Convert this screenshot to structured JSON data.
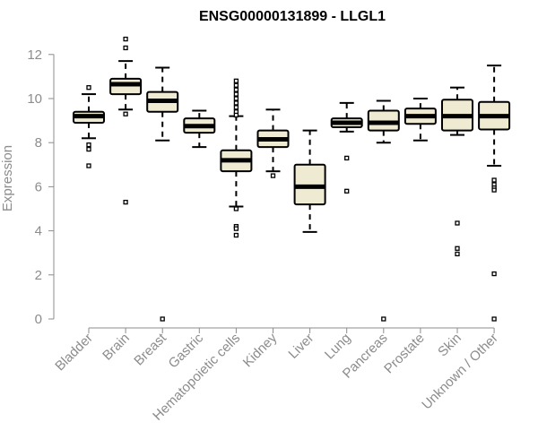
{
  "chart_data": {
    "type": "box",
    "title": "ENSG00000131899 - LLGL1",
    "xlabel": "",
    "ylabel": "Expression",
    "ylim": [
      0,
      12
    ],
    "yticks": [
      0,
      2,
      4,
      6,
      8,
      10,
      12
    ],
    "grid": false,
    "colors": {
      "box_fill": "#efead2",
      "stroke": "#000000",
      "axis": "#8c8c8c",
      "text": "#8c8c8c"
    },
    "categories": [
      "Bladder",
      "Brain",
      "Breast",
      "Gastric",
      "Hematopoietic cells",
      "Kidney",
      "Liver",
      "Lung",
      "Pancreas",
      "Prostate",
      "Skin",
      "Unknown / Other"
    ],
    "boxes": [
      {
        "name": "Bladder",
        "whisker_low": 8.2,
        "q1": 8.9,
        "median": 9.2,
        "q3": 9.4,
        "whisker_high": 10.2,
        "outliers": [
          10.5,
          7.9,
          7.7,
          6.95
        ]
      },
      {
        "name": "Brain",
        "whisker_low": 9.5,
        "q1": 10.2,
        "median": 10.65,
        "q3": 10.9,
        "whisker_high": 11.7,
        "outliers": [
          12.7,
          12.3,
          9.3,
          5.3
        ]
      },
      {
        "name": "Breast",
        "whisker_low": 8.1,
        "q1": 9.4,
        "median": 9.9,
        "q3": 10.3,
        "whisker_high": 11.4,
        "outliers": [
          0.0
        ]
      },
      {
        "name": "Gastric",
        "whisker_low": 7.8,
        "q1": 8.45,
        "median": 8.75,
        "q3": 9.1,
        "whisker_high": 9.45,
        "outliers": []
      },
      {
        "name": "Hematopoietic cells",
        "whisker_low": 5.1,
        "q1": 6.7,
        "median": 7.2,
        "q3": 7.65,
        "whisker_high": 9.2,
        "outliers": [
          10.8,
          10.6,
          10.4,
          10.2,
          10.0,
          9.8,
          9.6,
          9.4,
          9.25,
          5.0,
          4.2,
          4.1,
          3.8
        ]
      },
      {
        "name": "Kidney",
        "whisker_low": 6.7,
        "q1": 7.8,
        "median": 8.15,
        "q3": 8.55,
        "whisker_high": 9.5,
        "outliers": [
          6.5
        ]
      },
      {
        "name": "Liver",
        "whisker_low": 3.95,
        "q1": 5.2,
        "median": 6.0,
        "q3": 7.0,
        "whisker_high": 8.55,
        "outliers": []
      },
      {
        "name": "Lung",
        "whisker_low": 8.5,
        "q1": 8.7,
        "median": 8.9,
        "q3": 9.1,
        "whisker_high": 9.8,
        "outliers": [
          7.3,
          5.8
        ]
      },
      {
        "name": "Pancreas",
        "whisker_low": 8.0,
        "q1": 8.55,
        "median": 8.9,
        "q3": 9.45,
        "whisker_high": 9.9,
        "outliers": [
          0.0
        ]
      },
      {
        "name": "Prostate",
        "whisker_low": 8.1,
        "q1": 8.85,
        "median": 9.2,
        "q3": 9.55,
        "whisker_high": 10.0,
        "outliers": []
      },
      {
        "name": "Skin",
        "whisker_low": 8.35,
        "q1": 8.55,
        "median": 9.2,
        "q3": 9.95,
        "whisker_high": 10.5,
        "outliers": [
          4.35,
          3.2,
          2.95
        ]
      },
      {
        "name": "Unknown / Other",
        "whisker_low": 6.95,
        "q1": 8.6,
        "median": 9.2,
        "q3": 9.85,
        "whisker_high": 11.5,
        "outliers": [
          6.3,
          6.1,
          5.95,
          5.85,
          2.05,
          0.0
        ]
      }
    ]
  }
}
